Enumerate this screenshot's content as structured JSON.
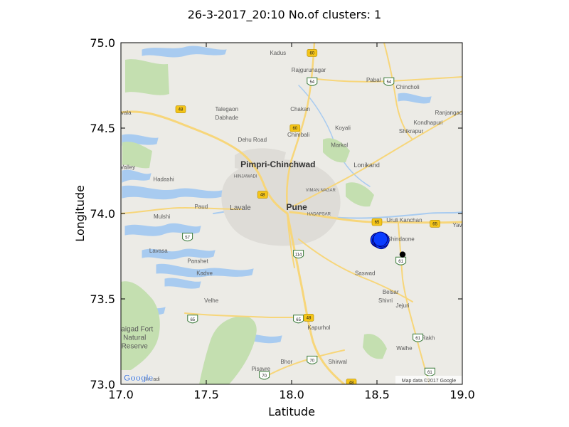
{
  "chart_data": {
    "type": "scatter",
    "title": "26-3-2017_20:10 No.of clusters: 1",
    "xlabel": "Latitude",
    "ylabel": "Longitude",
    "xlim": [
      17.0,
      19.0
    ],
    "ylim": [
      73.0,
      75.0
    ],
    "xticks": [
      17.0,
      17.5,
      18.0,
      18.5,
      19.0
    ],
    "xtick_labels": [
      "17.0",
      "17.5",
      "18.0",
      "18.5",
      "19.0"
    ],
    "yticks": [
      73.0,
      73.5,
      74.0,
      74.5,
      75.0
    ],
    "ytick_labels": [
      "73.0",
      "73.5",
      "74.0",
      "74.5",
      "75.0"
    ],
    "grid": false,
    "series": [
      {
        "color": "#0a3cff",
        "edge": "#00007a",
        "points": [
          [
            18.505,
            73.845
          ],
          [
            18.515,
            73.84
          ],
          [
            18.525,
            73.835
          ],
          [
            18.53,
            73.845
          ],
          [
            18.52,
            73.85
          ]
        ]
      },
      {
        "color": "#000000",
        "edge": "#000000",
        "points": [
          [
            18.65,
            73.76
          ]
        ]
      }
    ]
  },
  "map": {
    "colors": {
      "land": "#ecebe6",
      "water": "#a8cbf0",
      "park": "#c4dfb0",
      "road": "#f7d67a",
      "city": "#dedcd7"
    },
    "places": [
      {
        "name": "Kadus",
        "lat": 17.92,
        "lon": 74.93,
        "size": 8
      },
      {
        "name": "Rajgurunagar",
        "lat": 18.1,
        "lon": 74.83,
        "size": 8
      },
      {
        "name": "Pabal",
        "lat": 18.48,
        "lon": 74.77,
        "size": 8
      },
      {
        "name": "Chincholi",
        "lat": 18.68,
        "lon": 74.73,
        "size": 8
      },
      {
        "name": "Ranjangaon",
        "lat": 18.93,
        "lon": 74.58,
        "size": 8
      },
      {
        "name": "Kondhapuri",
        "lat": 18.8,
        "lon": 74.52,
        "size": 8
      },
      {
        "name": "Shikrapur",
        "lat": 18.7,
        "lon": 74.47,
        "size": 8
      },
      {
        "name": "Talegaon",
        "lat": 17.62,
        "lon": 74.6,
        "size": 8
      },
      {
        "name": "Dabhade",
        "lat": 17.62,
        "lon": 74.55,
        "size": 8
      },
      {
        "name": "Chakan",
        "lat": 18.05,
        "lon": 74.6,
        "size": 8
      },
      {
        "name": "Koyali",
        "lat": 18.3,
        "lon": 74.49,
        "size": 8
      },
      {
        "name": "Chimbali",
        "lat": 18.04,
        "lon": 74.45,
        "size": 8
      },
      {
        "name": "Dehu Road",
        "lat": 17.77,
        "lon": 74.42,
        "size": 8
      },
      {
        "name": "Markal",
        "lat": 18.28,
        "lon": 74.39,
        "size": 8
      },
      {
        "name": "Lonikand",
        "lat": 18.44,
        "lon": 74.27,
        "size": 9
      },
      {
        "name": "Pimpri-Chinchwad",
        "lat": 17.92,
        "lon": 74.27,
        "size": 12,
        "big": true
      },
      {
        "name": "HINJAWADI",
        "lat": 17.73,
        "lon": 74.21,
        "size": 6
      },
      {
        "name": "VIMAN NAGAR",
        "lat": 18.17,
        "lon": 74.13,
        "size": 6
      },
      {
        "name": "Hadashi",
        "lat": 17.25,
        "lon": 74.19,
        "size": 8
      },
      {
        "name": "Valley",
        "lat": 17.04,
        "lon": 74.26,
        "size": 8
      },
      {
        "name": "Paud",
        "lat": 17.47,
        "lon": 74.03,
        "size": 8
      },
      {
        "name": "Lavale",
        "lat": 17.7,
        "lon": 74.02,
        "size": 10
      },
      {
        "name": "Pune",
        "lat": 18.03,
        "lon": 74.02,
        "size": 12,
        "big": true
      },
      {
        "name": "HADAPSAR",
        "lat": 18.16,
        "lon": 73.99,
        "size": 6
      },
      {
        "name": "Mulshi",
        "lat": 17.24,
        "lon": 73.97,
        "size": 8
      },
      {
        "name": "Uruli Kanchan",
        "lat": 18.66,
        "lon": 73.95,
        "size": 8
      },
      {
        "name": "Yava",
        "lat": 18.98,
        "lon": 73.92,
        "size": 8
      },
      {
        "name": "Shindaone",
        "lat": 18.64,
        "lon": 73.84,
        "size": 8
      },
      {
        "name": "Lavasa",
        "lat": 17.22,
        "lon": 73.77,
        "size": 8
      },
      {
        "name": "Panshet",
        "lat": 17.45,
        "lon": 73.71,
        "size": 8
      },
      {
        "name": "Kadve",
        "lat": 17.49,
        "lon": 73.64,
        "size": 8
      },
      {
        "name": "Saswad",
        "lat": 18.43,
        "lon": 73.64,
        "size": 8
      },
      {
        "name": "Belsar",
        "lat": 18.58,
        "lon": 73.53,
        "size": 8
      },
      {
        "name": "Shivri",
        "lat": 18.55,
        "lon": 73.48,
        "size": 8
      },
      {
        "name": "Jejuri",
        "lat": 18.65,
        "lon": 73.45,
        "size": 8
      },
      {
        "name": "Velhe",
        "lat": 17.53,
        "lon": 73.48,
        "size": 8
      },
      {
        "name": "Kapurhol",
        "lat": 18.16,
        "lon": 73.32,
        "size": 8
      },
      {
        "name": "Rakh",
        "lat": 18.8,
        "lon": 73.26,
        "size": 8
      },
      {
        "name": "Walhe",
        "lat": 18.66,
        "lon": 73.2,
        "size": 8
      },
      {
        "name": "Raigad Fort",
        "lat": 17.08,
        "lon": 73.31,
        "size": 10
      },
      {
        "name": "Natural",
        "lat": 17.08,
        "lon": 73.26,
        "size": 10
      },
      {
        "name": "Reserve",
        "lat": 17.08,
        "lon": 73.21,
        "size": 10
      },
      {
        "name": "Bhor",
        "lat": 17.97,
        "lon": 73.12,
        "size": 8
      },
      {
        "name": "Shirwal",
        "lat": 18.27,
        "lon": 73.12,
        "size": 8
      },
      {
        "name": "Pisavre",
        "lat": 17.82,
        "lon": 73.08,
        "size": 8
      },
      {
        "name": "Birwadi",
        "lat": 17.18,
        "lon": 73.02,
        "size": 7
      },
      {
        "name": "vala",
        "lat": 17.03,
        "lon": 74.58,
        "size": 8
      }
    ],
    "shields": [
      {
        "label": "60",
        "lat": 18.12,
        "lon": 74.94,
        "kind": "nh"
      },
      {
        "label": "54",
        "lat": 18.12,
        "lon": 74.77,
        "kind": "sh"
      },
      {
        "label": "54",
        "lat": 18.57,
        "lon": 74.77,
        "kind": "sh"
      },
      {
        "label": "48",
        "lat": 17.35,
        "lon": 74.61,
        "kind": "nh"
      },
      {
        "label": "60",
        "lat": 18.02,
        "lon": 74.5,
        "kind": "nh"
      },
      {
        "label": "48",
        "lat": 17.83,
        "lon": 74.11,
        "kind": "nh"
      },
      {
        "label": "65",
        "lat": 18.5,
        "lon": 73.95,
        "kind": "nh"
      },
      {
        "label": "65",
        "lat": 18.84,
        "lon": 73.94,
        "kind": "nh"
      },
      {
        "label": "57",
        "lat": 17.39,
        "lon": 73.86,
        "kind": "sh"
      },
      {
        "label": "114",
        "lat": 18.04,
        "lon": 73.76,
        "kind": "sh"
      },
      {
        "label": "61",
        "lat": 18.64,
        "lon": 73.72,
        "kind": "sh"
      },
      {
        "label": "65",
        "lat": 17.42,
        "lon": 73.38,
        "kind": "sh"
      },
      {
        "label": "65",
        "lat": 18.04,
        "lon": 73.38,
        "kind": "sh"
      },
      {
        "label": "48",
        "lat": 18.1,
        "lon": 73.39,
        "kind": "nh"
      },
      {
        "label": "61",
        "lat": 18.74,
        "lon": 73.27,
        "kind": "sh"
      },
      {
        "label": "70",
        "lat": 18.12,
        "lon": 73.14,
        "kind": "sh"
      },
      {
        "label": "70",
        "lat": 17.84,
        "lon": 73.05,
        "kind": "sh"
      },
      {
        "label": "48",
        "lat": 18.35,
        "lon": 73.01,
        "kind": "nh"
      },
      {
        "label": "61",
        "lat": 18.81,
        "lon": 73.07,
        "kind": "sh"
      }
    ],
    "logo": "Google",
    "attribution": "Map data ©2017 Google"
  }
}
